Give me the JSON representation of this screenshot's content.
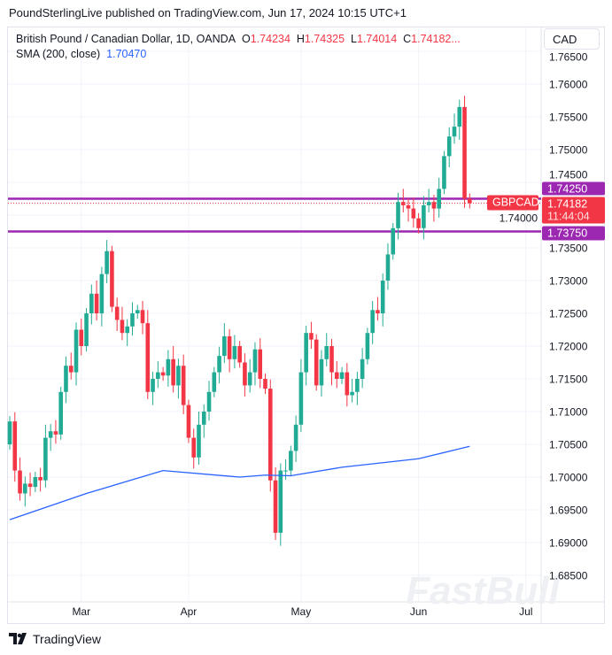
{
  "header": {
    "published": "PoundSterlingLive published on TradingView.com, Jun 17, 2024 10:15 UTC+1"
  },
  "legend": {
    "symbol": "British Pound / Canadian Dollar, 1D, OANDA",
    "o_label": "O",
    "o": "1.74234",
    "h_label": "H",
    "h": "1.74325",
    "l_label": "L",
    "l": "1.74014",
    "c_label": "C",
    "c": "1.74182...",
    "sma_label": "SMA (200, close)",
    "sma": "1.70470"
  },
  "currency_button": "CAD",
  "footer": {
    "brand": "TradingView"
  },
  "watermark": "FastBull",
  "colors": {
    "up": "#22ab94",
    "down": "#f23645",
    "sma": "#2962ff",
    "level": "#9c27b0"
  },
  "chart_data": {
    "type": "candlestick",
    "title": "British Pound / Canadian Dollar, 1D, OANDA",
    "ylim": [
      1.6835,
      1.7668
    ],
    "y_ticks": [
      "1.68500",
      "1.69000",
      "1.69500",
      "1.70000",
      "1.70500",
      "1.71000",
      "1.71500",
      "1.72000",
      "1.72500",
      "1.73000",
      "1.73500",
      "1.74000",
      "1.74500",
      "1.75000",
      "1.75500",
      "1.76000",
      "1.76500"
    ],
    "x_ticks": [
      {
        "label": "Mar",
        "index": 14
      },
      {
        "label": "Apr",
        "index": 35
      },
      {
        "label": "May",
        "index": 57
      },
      {
        "label": "Jun",
        "index": 80
      },
      {
        "label": "Jul",
        "index": 101
      }
    ],
    "first_open": 1.705,
    "closes": [
      1.7085,
      1.701,
      1.6975,
      1.699,
      1.6985,
      1.7,
      1.6995,
      1.706,
      1.707,
      1.7065,
      1.713,
      1.717,
      1.716,
      1.7225,
      1.72,
      1.725,
      1.728,
      1.725,
      1.731,
      1.7345,
      1.726,
      1.724,
      1.722,
      1.723,
      1.725,
      1.7255,
      1.7235,
      1.713,
      1.715,
      1.716,
      1.7155,
      1.718,
      1.714,
      1.717,
      1.711,
      1.706,
      1.703,
      1.708,
      1.71,
      1.713,
      1.716,
      1.7185,
      1.7215,
      1.718,
      1.72,
      1.7175,
      1.714,
      1.716,
      1.7195,
      1.715,
      1.7135,
      1.6995,
      1.6915,
      1.701,
      1.701,
      1.704,
      1.708,
      1.716,
      1.722,
      1.721,
      1.714,
      1.718,
      1.72,
      1.716,
      1.715,
      1.716,
      1.7125,
      1.713,
      1.715,
      1.718,
      1.722,
      1.7255,
      1.725,
      1.73,
      1.734,
      1.738,
      1.742,
      1.7415,
      1.741,
      1.7395,
      1.738,
      1.7415,
      1.742,
      1.741,
      1.744,
      1.749,
      1.752,
      1.7535,
      1.7565,
      1.7425,
      1.74182
    ],
    "sma": [
      [
        0,
        1.6935
      ],
      [
        15,
        1.6975
      ],
      [
        30,
        1.701
      ],
      [
        45,
        1.7
      ],
      [
        50,
        1.7003
      ],
      [
        55,
        1.7002
      ],
      [
        65,
        1.7015
      ],
      [
        80,
        1.7028
      ],
      [
        90,
        1.7047
      ]
    ],
    "levels": [
      {
        "label": "1.74250",
        "value": 1.7425
      },
      {
        "label": "1.73750",
        "value": 1.7375
      }
    ],
    "last": {
      "symbol": "GBPCAD",
      "price": "1.74182",
      "countdown": "11:44:04",
      "value": 1.74182
    }
  }
}
